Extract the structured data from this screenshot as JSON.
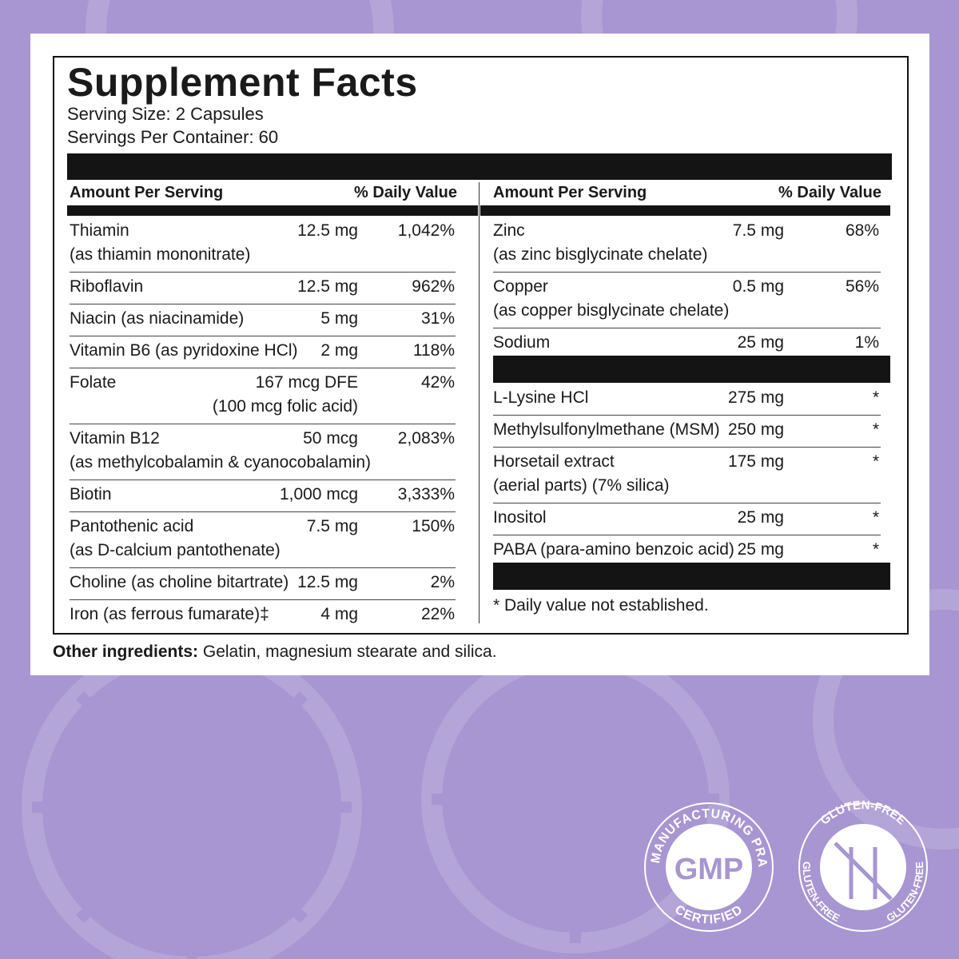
{
  "title": "Supplement Facts",
  "serving_size": "Serving Size: 2 Capsules",
  "servings_per_container": "Servings Per Container: 60",
  "left": {
    "header": [
      "Amount Per Serving",
      "% Daily Value"
    ],
    "rows": [
      {
        "name": "Thiamin",
        "detail": "(as thiamin mononitrate)",
        "amount": "12.5 mg",
        "dv": "1,042%"
      },
      {
        "name": "Riboflavin",
        "amount": "12.5 mg",
        "dv": "962%"
      },
      {
        "name": "Niacin (as niacinamide)",
        "amount": "5 mg",
        "dv": "31%"
      },
      {
        "name": "Vitamin B6 (as pyridoxine HCl)",
        "amount": "2 mg",
        "dv": "118%"
      },
      {
        "name": "Folate",
        "amount": "167 mcg DFE",
        "amount_detail": "(100 mcg folic acid)",
        "dv": "42%"
      },
      {
        "name": "Vitamin B12",
        "detail": "(as methylcobalamin & cyanocobalamin)",
        "amount": "50 mcg",
        "dv": "2,083%"
      },
      {
        "name": "Biotin",
        "amount": "1,000 mcg",
        "dv": "3,333%"
      },
      {
        "name": "Pantothenic acid",
        "detail": "(as D-calcium pantothenate)",
        "amount": "7.5 mg",
        "dv": "150%"
      },
      {
        "name": "Choline (as choline bitartrate)",
        "amount": "12.5 mg",
        "dv": "2%"
      },
      {
        "name": "Iron (as ferrous fumarate)‡",
        "amount": "4 mg",
        "dv": "22%"
      }
    ]
  },
  "right": {
    "header": [
      "Amount Per Serving",
      "% Daily Value"
    ],
    "groups": [
      [
        {
          "name": "Zinc",
          "detail": "(as zinc bisglycinate chelate)",
          "amount": "7.5 mg",
          "dv": "68%"
        },
        {
          "name": "Copper",
          "detail": "(as copper bisglycinate chelate)",
          "amount": "0.5 mg",
          "dv": "56%"
        },
        {
          "name": "Sodium",
          "amount": "25 mg",
          "dv": "1%"
        }
      ],
      [
        {
          "name": "L-Lysine HCl",
          "amount": "275 mg",
          "dv": "*"
        },
        {
          "name": "Methylsulfonylmethane (MSM)",
          "amount": "250 mg",
          "dv": "*"
        },
        {
          "name": "Horsetail extract",
          "detail": "(aerial parts) (7% silica)",
          "amount": "175 mg",
          "dv": "*"
        },
        {
          "name": "Inositol",
          "amount": "25 mg",
          "dv": "*"
        },
        {
          "name": "PABA (para-amino benzoic acid)",
          "amount": "25 mg",
          "dv": "*"
        }
      ]
    ],
    "footnote": "* Daily value not established."
  },
  "other_ingredients": {
    "label": "Other ingredients:",
    "text": "Gelatin, magnesium stearate and silica."
  },
  "badges": {
    "gmp": {
      "arc_top": "GOOD MANUFACTURING PRACTICE",
      "center": "GMP",
      "arc_bottom": "CERTIFIED"
    },
    "gluten_free": {
      "arc_top": "GLUTEN-FREE",
      "arc_left": "GLUTEN-FREE",
      "arc_right": "GLUTEN-FREE"
    }
  }
}
